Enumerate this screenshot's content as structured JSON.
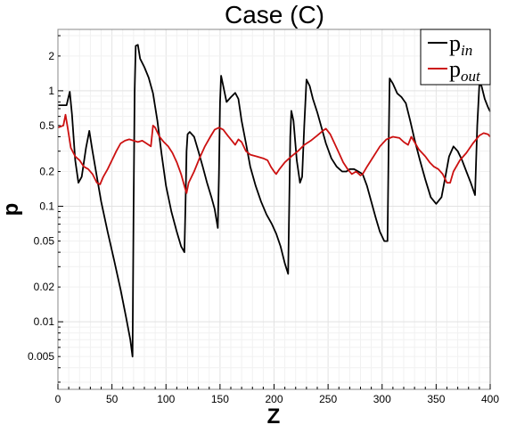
{
  "chart_data": {
    "type": "line",
    "title": "Case (C)",
    "xlabel": "Z",
    "ylabel": "p",
    "xscale": "linear",
    "yscale": "log",
    "xlim": [
      0,
      400
    ],
    "ylim": [
      0.0026,
      3.4
    ],
    "grid": true,
    "legend_position": "top-right",
    "x_ticks": [
      0,
      50,
      100,
      150,
      200,
      250,
      300,
      350,
      400
    ],
    "y_ticks": [
      {
        "value": 0.005,
        "label": "0.005"
      },
      {
        "value": 0.01,
        "label": "0.01"
      },
      {
        "value": 0.02,
        "label": "0.02"
      },
      {
        "value": 0.05,
        "label": "0.05"
      },
      {
        "value": 0.1,
        "label": "0.1"
      },
      {
        "value": 0.2,
        "label": "0.2"
      },
      {
        "value": 0.5,
        "label": "0.5"
      },
      {
        "value": 1,
        "label": "1"
      },
      {
        "value": 2,
        "label": "2"
      }
    ],
    "series": [
      {
        "name": "p_in",
        "legend_main": "p",
        "legend_sub": "in",
        "color": "#000000",
        "points": [
          [
            0,
            0.75
          ],
          [
            8,
            0.75
          ],
          [
            11,
            0.98
          ],
          [
            13,
            0.62
          ],
          [
            16,
            0.25
          ],
          [
            19,
            0.16
          ],
          [
            22,
            0.18
          ],
          [
            26,
            0.32
          ],
          [
            29,
            0.45
          ],
          [
            32,
            0.3
          ],
          [
            36,
            0.18
          ],
          [
            40,
            0.11
          ],
          [
            46,
            0.06
          ],
          [
            52,
            0.034
          ],
          [
            58,
            0.019
          ],
          [
            63,
            0.011
          ],
          [
            67,
            0.007
          ],
          [
            69,
            0.005
          ],
          [
            70,
            0.1
          ],
          [
            71,
            1.0
          ],
          [
            72,
            2.45
          ],
          [
            74,
            2.5
          ],
          [
            76,
            1.9
          ],
          [
            80,
            1.6
          ],
          [
            84,
            1.3
          ],
          [
            88,
            0.95
          ],
          [
            92,
            0.55
          ],
          [
            96,
            0.28
          ],
          [
            100,
            0.15
          ],
          [
            105,
            0.09
          ],
          [
            110,
            0.06
          ],
          [
            114,
            0.045
          ],
          [
            117,
            0.04
          ],
          [
            118,
            0.1
          ],
          [
            119,
            0.3
          ],
          [
            120,
            0.42
          ],
          [
            122,
            0.44
          ],
          [
            126,
            0.4
          ],
          [
            130,
            0.3
          ],
          [
            134,
            0.22
          ],
          [
            138,
            0.16
          ],
          [
            142,
            0.12
          ],
          [
            145,
            0.095
          ],
          [
            148,
            0.065
          ],
          [
            149,
            0.2
          ],
          [
            150,
            0.8
          ],
          [
            151,
            1.35
          ],
          [
            153,
            1.1
          ],
          [
            156,
            0.8
          ],
          [
            160,
            0.88
          ],
          [
            164,
            0.96
          ],
          [
            167,
            0.85
          ],
          [
            170,
            0.55
          ],
          [
            174,
            0.35
          ],
          [
            178,
            0.22
          ],
          [
            183,
            0.15
          ],
          [
            188,
            0.11
          ],
          [
            193,
            0.085
          ],
          [
            198,
            0.07
          ],
          [
            202,
            0.058
          ],
          [
            206,
            0.045
          ],
          [
            210,
            0.032
          ],
          [
            213,
            0.026
          ],
          [
            214,
            0.1
          ],
          [
            215,
            0.4
          ],
          [
            216,
            0.67
          ],
          [
            218,
            0.55
          ],
          [
            221,
            0.25
          ],
          [
            224,
            0.16
          ],
          [
            226,
            0.18
          ],
          [
            228,
            0.5
          ],
          [
            230,
            1.25
          ],
          [
            233,
            1.1
          ],
          [
            236,
            0.85
          ],
          [
            240,
            0.65
          ],
          [
            244,
            0.48
          ],
          [
            248,
            0.35
          ],
          [
            253,
            0.26
          ],
          [
            258,
            0.22
          ],
          [
            263,
            0.2
          ],
          [
            267,
            0.2
          ],
          [
            270,
            0.21
          ],
          [
            274,
            0.21
          ],
          [
            278,
            0.2
          ],
          [
            282,
            0.19
          ],
          [
            286,
            0.15
          ],
          [
            290,
            0.11
          ],
          [
            294,
            0.08
          ],
          [
            298,
            0.06
          ],
          [
            302,
            0.05
          ],
          [
            305,
            0.05
          ],
          [
            306,
            0.3
          ],
          [
            307,
            1.28
          ],
          [
            310,
            1.15
          ],
          [
            314,
            0.95
          ],
          [
            318,
            0.88
          ],
          [
            322,
            0.78
          ],
          [
            326,
            0.55
          ],
          [
            330,
            0.38
          ],
          [
            335,
            0.25
          ],
          [
            340,
            0.17
          ],
          [
            345,
            0.12
          ],
          [
            350,
            0.105
          ],
          [
            355,
            0.12
          ],
          [
            358,
            0.17
          ],
          [
            362,
            0.27
          ],
          [
            366,
            0.33
          ],
          [
            370,
            0.3
          ],
          [
            374,
            0.25
          ],
          [
            378,
            0.2
          ],
          [
            382,
            0.16
          ],
          [
            386,
            0.125
          ],
          [
            388,
            0.5
          ],
          [
            390,
            1.15
          ],
          [
            392,
            1.1
          ],
          [
            395,
            0.85
          ],
          [
            398,
            0.72
          ],
          [
            400,
            0.66
          ]
        ]
      },
      {
        "name": "p_out",
        "legend_main": "p",
        "legend_sub": "out",
        "color": "#cc1111",
        "points": [
          [
            0,
            0.48
          ],
          [
            5,
            0.5
          ],
          [
            7,
            0.62
          ],
          [
            9,
            0.48
          ],
          [
            12,
            0.32
          ],
          [
            16,
            0.27
          ],
          [
            20,
            0.25
          ],
          [
            24,
            0.22
          ],
          [
            28,
            0.21
          ],
          [
            32,
            0.19
          ],
          [
            36,
            0.16
          ],
          [
            39,
            0.155
          ],
          [
            42,
            0.18
          ],
          [
            46,
            0.21
          ],
          [
            50,
            0.25
          ],
          [
            54,
            0.3
          ],
          [
            58,
            0.35
          ],
          [
            62,
            0.37
          ],
          [
            66,
            0.38
          ],
          [
            70,
            0.37
          ],
          [
            74,
            0.36
          ],
          [
            78,
            0.37
          ],
          [
            82,
            0.35
          ],
          [
            86,
            0.33
          ],
          [
            88,
            0.5
          ],
          [
            90,
            0.48
          ],
          [
            94,
            0.4
          ],
          [
            98,
            0.36
          ],
          [
            102,
            0.33
          ],
          [
            106,
            0.29
          ],
          [
            110,
            0.24
          ],
          [
            114,
            0.19
          ],
          [
            117,
            0.15
          ],
          [
            119,
            0.13
          ],
          [
            121,
            0.16
          ],
          [
            126,
            0.2
          ],
          [
            131,
            0.26
          ],
          [
            136,
            0.33
          ],
          [
            141,
            0.4
          ],
          [
            145,
            0.46
          ],
          [
            149,
            0.48
          ],
          [
            153,
            0.46
          ],
          [
            157,
            0.41
          ],
          [
            161,
            0.37
          ],
          [
            164,
            0.34
          ],
          [
            167,
            0.38
          ],
          [
            170,
            0.36
          ],
          [
            174,
            0.3
          ],
          [
            178,
            0.28
          ],
          [
            184,
            0.27
          ],
          [
            190,
            0.26
          ],
          [
            194,
            0.25
          ],
          [
            197,
            0.22
          ],
          [
            200,
            0.2
          ],
          [
            202,
            0.19
          ],
          [
            205,
            0.21
          ],
          [
            210,
            0.24
          ],
          [
            216,
            0.27
          ],
          [
            222,
            0.3
          ],
          [
            228,
            0.34
          ],
          [
            234,
            0.37
          ],
          [
            240,
            0.41
          ],
          [
            245,
            0.45
          ],
          [
            248,
            0.47
          ],
          [
            252,
            0.42
          ],
          [
            256,
            0.35
          ],
          [
            260,
            0.29
          ],
          [
            264,
            0.24
          ],
          [
            268,
            0.21
          ],
          [
            272,
            0.19
          ],
          [
            276,
            0.2
          ],
          [
            280,
            0.185
          ],
          [
            282,
            0.19
          ],
          [
            286,
            0.22
          ],
          [
            292,
            0.27
          ],
          [
            298,
            0.33
          ],
          [
            304,
            0.38
          ],
          [
            310,
            0.4
          ],
          [
            316,
            0.39
          ],
          [
            320,
            0.36
          ],
          [
            324,
            0.34
          ],
          [
            327,
            0.4
          ],
          [
            330,
            0.36
          ],
          [
            334,
            0.31
          ],
          [
            340,
            0.27
          ],
          [
            344,
            0.24
          ],
          [
            348,
            0.22
          ],
          [
            352,
            0.21
          ],
          [
            356,
            0.19
          ],
          [
            360,
            0.16
          ],
          [
            363,
            0.16
          ],
          [
            366,
            0.2
          ],
          [
            372,
            0.25
          ],
          [
            378,
            0.29
          ],
          [
            384,
            0.35
          ],
          [
            390,
            0.41
          ],
          [
            394,
            0.43
          ],
          [
            398,
            0.42
          ],
          [
            400,
            0.4
          ]
        ]
      }
    ]
  }
}
